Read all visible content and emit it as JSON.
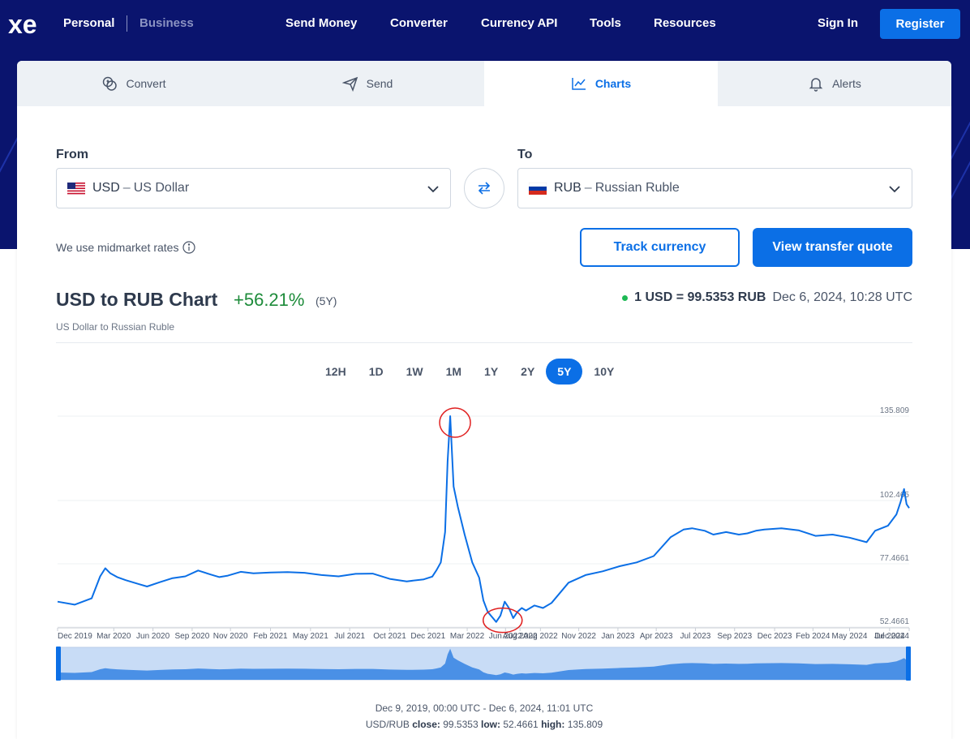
{
  "nav": {
    "segments": [
      "Personal",
      "Business"
    ],
    "links": [
      "Send Money",
      "Converter",
      "Currency API",
      "Tools",
      "Resources"
    ],
    "sign_in": "Sign In",
    "register": "Register"
  },
  "tabs": [
    {
      "label": "Convert",
      "icon": "coins-icon"
    },
    {
      "label": "Send",
      "icon": "paper-plane-icon"
    },
    {
      "label": "Charts",
      "icon": "line-chart-icon",
      "active": true
    },
    {
      "label": "Alerts",
      "icon": "bell-icon"
    }
  ],
  "from": {
    "label": "From",
    "code": "USD",
    "separator": "–",
    "name": "US Dollar"
  },
  "to": {
    "label": "To",
    "code": "RUB",
    "separator": "–",
    "name": "Russian Ruble"
  },
  "midmarket": "We use midmarket rates",
  "buttons": {
    "track": "Track currency",
    "quote": "View transfer quote"
  },
  "chart_header": {
    "title": "USD to RUB Chart",
    "change": "+56.21%",
    "period": "(5Y)",
    "subtitle": "US Dollar to Russian Ruble",
    "rate": "1 USD = 99.5353 RUB",
    "timestamp": "Dec 6, 2024, 10:28 UTC"
  },
  "ranges": [
    "12H",
    "1D",
    "1W",
    "1M",
    "1Y",
    "2Y",
    "5Y",
    "10Y"
  ],
  "active_range": "5Y",
  "colors": {
    "accent": "#0b6fe6",
    "header_bg": "#0a146e",
    "positive": "#1d8b3a",
    "annotation": "#e02020"
  },
  "chart_data": {
    "type": "line",
    "y_ticks": [
      "135.809",
      "102.465",
      "77.4661",
      "52.4661"
    ],
    "y_tick_values": [
      135.809,
      102.465,
      77.4661,
      52.4661
    ],
    "ylim": [
      52.4661,
      135.809
    ],
    "x_ticks": [
      "Dec 2019",
      "Mar 2020",
      "Jun 2020",
      "Sep 2020",
      "Nov 2020",
      "Feb 2021",
      "May 2021",
      "Jul 2021",
      "Oct 2021",
      "Dec 2021",
      "Mar 2022",
      "Jun 2022",
      "Aug 2022",
      "Aug 2022",
      "Nov 2022",
      "Jan 2023",
      "Apr 2023",
      "Jul 2023",
      "Sep 2023",
      "Dec 2023",
      "Feb 2024",
      "May 2024",
      "Jul 2024",
      "Dec 2024"
    ],
    "x_tick_pos": [
      0.0,
      0.066,
      0.112,
      0.158,
      0.203,
      0.25,
      0.297,
      0.343,
      0.39,
      0.435,
      0.481,
      0.526,
      0.543,
      0.567,
      0.612,
      0.658,
      0.703,
      0.749,
      0.795,
      0.842,
      0.887,
      0.93,
      0.977,
      1.0
    ],
    "series": [
      {
        "x": [
          0.0,
          0.02,
          0.04,
          0.05,
          0.056,
          0.062,
          0.07,
          0.08,
          0.095,
          0.105,
          0.12,
          0.135,
          0.15,
          0.165,
          0.18,
          0.19,
          0.2,
          0.215,
          0.23,
          0.25,
          0.27,
          0.29,
          0.31,
          0.33,
          0.35,
          0.37,
          0.39,
          0.41,
          0.43,
          0.44,
          0.445,
          0.45,
          0.455,
          0.458,
          0.461,
          0.465,
          0.47,
          0.478,
          0.487,
          0.495,
          0.5,
          0.505,
          0.51,
          0.515,
          0.52,
          0.525,
          0.53,
          0.535,
          0.54,
          0.545,
          0.55,
          0.56,
          0.57,
          0.58,
          0.6,
          0.62,
          0.64,
          0.66,
          0.68,
          0.7,
          0.72,
          0.735,
          0.745,
          0.76,
          0.77,
          0.785,
          0.8,
          0.81,
          0.82,
          0.83,
          0.85,
          0.87,
          0.89,
          0.91,
          0.93,
          0.95,
          0.96,
          0.975,
          0.985,
          0.99,
          0.994,
          0.997,
          1.0
        ],
        "y": [
          62.5,
          61.3,
          63.8,
          72.5,
          75.7,
          73.7,
          72.2,
          71.0,
          69.5,
          68.5,
          70.2,
          71.8,
          72.5,
          74.8,
          73.2,
          72.2,
          72.8,
          74.3,
          73.7,
          74.0,
          74.2,
          73.9,
          73.0,
          72.5,
          73.5,
          73.6,
          71.5,
          70.5,
          71.3,
          72.4,
          75.0,
          78.0,
          90.0,
          118.0,
          135.8,
          108.0,
          100.0,
          89.0,
          78.0,
          72.0,
          63.0,
          58.5,
          56.5,
          54.5,
          57.0,
          62.5,
          60.0,
          56.0,
          58.5,
          60.0,
          59.0,
          61.0,
          60.0,
          62.0,
          70.0,
          73.0,
          74.5,
          76.5,
          78.0,
          80.5,
          88.0,
          91.0,
          91.5,
          90.5,
          89.0,
          90.0,
          89.0,
          89.5,
          90.5,
          91.0,
          91.5,
          90.7,
          88.5,
          89.0,
          87.8,
          86.0,
          90.5,
          92.5,
          97.0,
          102.0,
          107.0,
          101.0,
          99.5
        ]
      }
    ]
  },
  "footer": {
    "range_text": "Dec 9, 2019, 00:00 UTC - Dec 6, 2024, 11:01 UTC",
    "pair": "USD/RUB",
    "close_label": "close:",
    "close": "99.5353",
    "low_label": "low:",
    "low": "52.4661",
    "high_label": "high:",
    "high": "135.809"
  }
}
